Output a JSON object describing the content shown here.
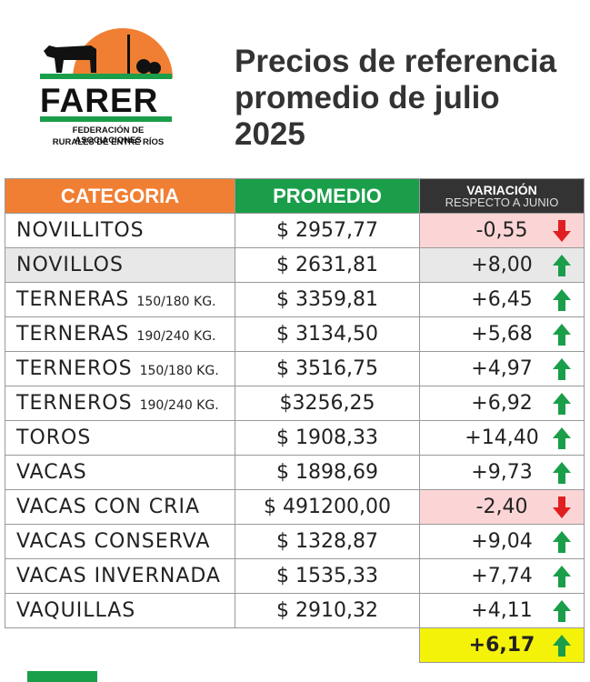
{
  "header": {
    "logo": {
      "name": "FARER",
      "subtitle_lines": [
        "FEDERACIÓN DE ASOCIACIONES",
        "RURALES DE ENTRE RÍOS"
      ]
    },
    "title_lines": [
      "Precios de referencia",
      "promedio de julio",
      "2025"
    ]
  },
  "table": {
    "headers": {
      "category": "CATEGORIA",
      "average": "PROMEDIO",
      "variation": "VARIACIÓN",
      "variation_note": "RESPECTO A JUNIO"
    },
    "rows": [
      {
        "category": "NOVILLITOS",
        "size": null,
        "average": "$ 2957,77",
        "variation": "-0,55"
      },
      {
        "category": "NOVILLOS",
        "size": null,
        "average": "$ 2631,81",
        "variation": "+8,00"
      },
      {
        "category": "TERNERAS",
        "size": "150/180 KG.",
        "average": "$ 3359,81",
        "variation": "+6,45"
      },
      {
        "category": "TERNERAS",
        "size": "190/240 KG.",
        "average": "$ 3134,50",
        "variation": "+5,68"
      },
      {
        "category": "TERNEROS",
        "size": "150/180 KG.",
        "average": "$ 3516,75",
        "variation": "+4,97"
      },
      {
        "category": "TERNEROS",
        "size": "190/240 KG.",
        "average": "$3256,25",
        "variation": "+6,92"
      },
      {
        "category": "TOROS",
        "size": null,
        "average": "$ 1908,33",
        "variation": "+14,40"
      },
      {
        "category": "VACAS",
        "size": null,
        "average": "$ 1898,69",
        "variation": "+9,73"
      },
      {
        "category": "VACAS CON CRIA",
        "size": null,
        "average": "$ 491200,00",
        "variation": "-2,40"
      },
      {
        "category": "VACAS CONSERVA",
        "size": null,
        "average": "$ 1328,87",
        "variation": "+9,04"
      },
      {
        "category": "VACAS INVERNADA",
        "size": null,
        "average": "$ 1535,33",
        "variation": "+7,74"
      },
      {
        "category": "VAQUILLAS",
        "size": null,
        "average": "$ 2910,32",
        "variation": "+4,11"
      }
    ],
    "total_variation": "+6,17"
  }
}
